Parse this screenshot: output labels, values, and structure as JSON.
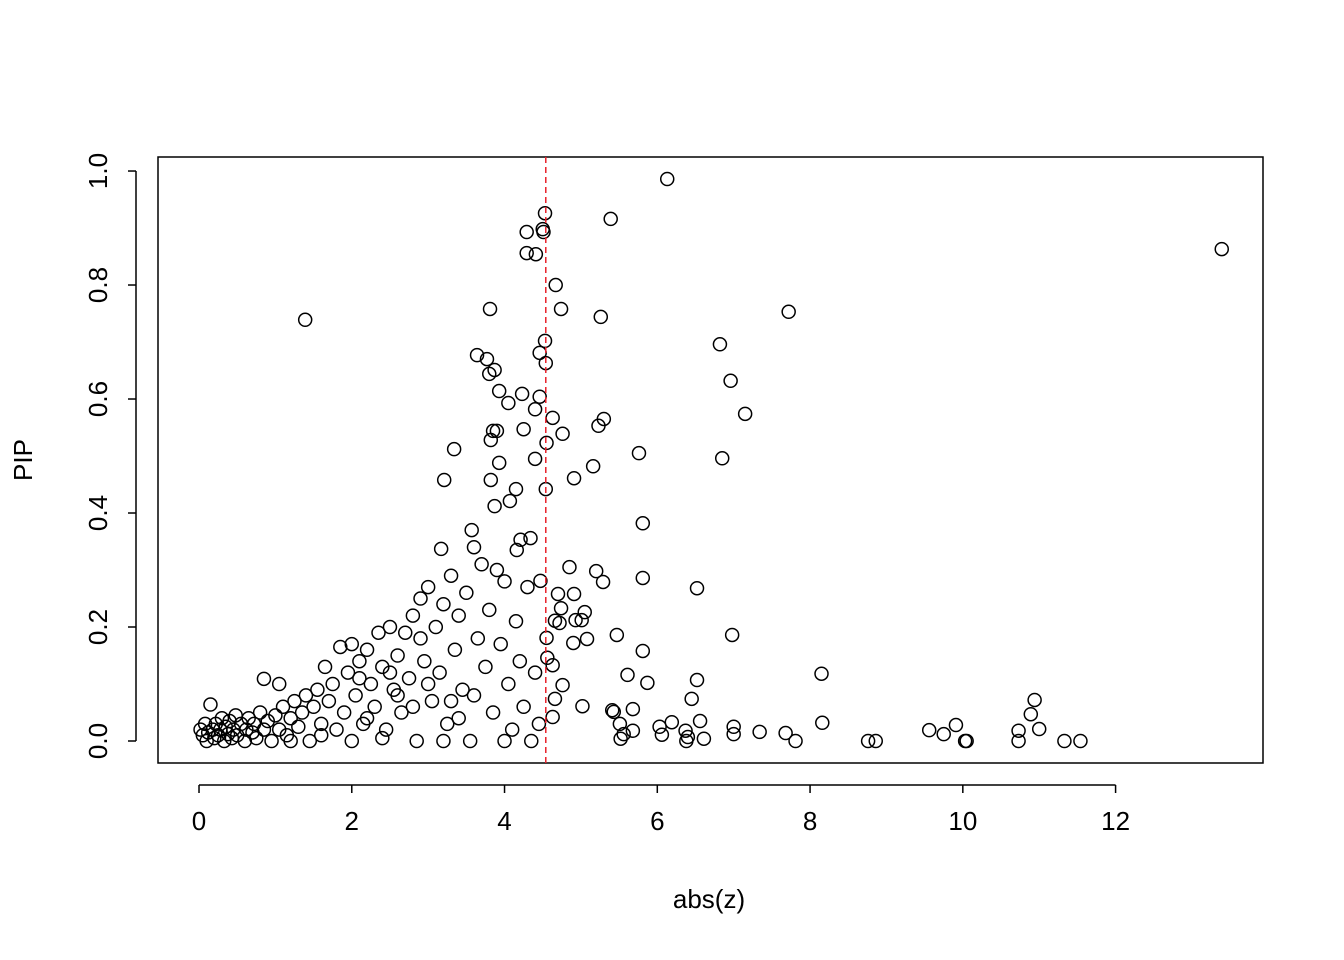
{
  "chart_data": {
    "type": "scatter",
    "x_label": "abs(z)",
    "y_label": "PIP",
    "xlim": [
      -0.537,
      13.93
    ],
    "ylim": [
      -0.0386,
      1.0246
    ],
    "xticks": [
      0,
      2,
      4,
      6,
      8,
      10,
      12
    ],
    "yticks": [
      {
        "value": 0,
        "label": "0.0"
      },
      0.2,
      0.4,
      0.6,
      0.8,
      {
        "value": 1,
        "label": "1.0"
      }
    ],
    "color": "#000000",
    "vline": {
      "x": 4.54,
      "color": "#e8202a"
    },
    "x": [
      6.13,
      13.39,
      5.39,
      4.53,
      4.5,
      4.51,
      4.29,
      4.29,
      4.41,
      4.67,
      1.39,
      3.81,
      4.74,
      5.26,
      7.72,
      6.82,
      4.53,
      3.64,
      3.77,
      4.46,
      4.54,
      3.8,
      3.87,
      6.96,
      3.93,
      4.23,
      4.46,
      4.05,
      4.4,
      7.15,
      4.63,
      5.3,
      5.23,
      4.25,
      3.85,
      3.9,
      4.76,
      3.82,
      4.55,
      3.34,
      5.76,
      4.4,
      6.85,
      3.93,
      5.16,
      4.91,
      3.21,
      3.82,
      4.15,
      4.54,
      4.07,
      3.87,
      5.81,
      3.57,
      4.34,
      4.21,
      3.17,
      4.16,
      4.85,
      5.2,
      5.81,
      5.29,
      4.47,
      6.52,
      4.7,
      4.91,
      5.47,
      6.98,
      5.81,
      5.61,
      5.87,
      6.52,
      8.15,
      6.45,
      0.85,
      1.05,
      10.94,
      10.89,
      5.68,
      8.16,
      10.73,
      10.73,
      11.0,
      9.56,
      9.75,
      9.91,
      10.03,
      10.05,
      11.33,
      11.54,
      8.76,
      8.86,
      7.81,
      7.68,
      7.34,
      7.0,
      7.0,
      6.56,
      6.61,
      6.37,
      6.38,
      6.4,
      6.19,
      6.03,
      6.06,
      5.68,
      5.52,
      5.56,
      5.51,
      5.43,
      5.41,
      5.05,
      5.01,
      4.93,
      5.08,
      4.9,
      4.55,
      4.56,
      4.63,
      4.76,
      4.66,
      4.63,
      5.02,
      4.72,
      4.74,
      4.66,
      0.02,
      0.05,
      0.08,
      0.1,
      0.12,
      0.15,
      0.18,
      0.2,
      0.22,
      0.25,
      0.28,
      0.3,
      0.33,
      0.35,
      0.38,
      0.4,
      0.43,
      0.45,
      0.48,
      0.5,
      0.55,
      0.6,
      0.62,
      0.65,
      0.7,
      0.72,
      0.75,
      0.8,
      0.85,
      0.9,
      0.95,
      1.0,
      1.05,
      1.1,
      1.15,
      1.2,
      1.25,
      1.3,
      1.35,
      1.4,
      1.45,
      1.5,
      1.55,
      1.6,
      1.65,
      1.7,
      1.75,
      1.8,
      1.85,
      1.9,
      1.95,
      2.0,
      2.05,
      2.1,
      2.15,
      2.2,
      2.25,
      2.3,
      2.35,
      2.4,
      2.45,
      2.5,
      2.55,
      2.6,
      2.65,
      2.7,
      2.75,
      2.8,
      2.85,
      2.9,
      2.95,
      3.0,
      3.05,
      3.1,
      3.15,
      3.2,
      3.25,
      3.3,
      3.35,
      3.4,
      3.45,
      3.5,
      3.55,
      3.6,
      3.65,
      3.7,
      3.75,
      3.8,
      3.85,
      3.9,
      3.95,
      4.0,
      4.05,
      4.1,
      4.15,
      4.2,
      4.25,
      4.3,
      4.35,
      4.4,
      4.45,
      1.2,
      1.6,
      2.0,
      2.4,
      2.8,
      3.2,
      3.6,
      4.0,
      2.2,
      2.6,
      3.0,
      3.4,
      2.1,
      2.5,
      2.9,
      3.3
    ],
    "values": [
      0.986,
      0.863,
      0.916,
      0.926,
      0.898,
      0.893,
      0.893,
      0.856,
      0.854,
      0.8,
      0.739,
      0.758,
      0.758,
      0.744,
      0.753,
      0.696,
      0.702,
      0.677,
      0.67,
      0.681,
      0.663,
      0.644,
      0.651,
      0.632,
      0.614,
      0.609,
      0.604,
      0.593,
      0.582,
      0.574,
      0.567,
      0.565,
      0.553,
      0.547,
      0.544,
      0.544,
      0.539,
      0.528,
      0.523,
      0.512,
      0.505,
      0.495,
      0.496,
      0.488,
      0.482,
      0.461,
      0.458,
      0.458,
      0.442,
      0.442,
      0.421,
      0.412,
      0.382,
      0.37,
      0.356,
      0.353,
      0.337,
      0.335,
      0.305,
      0.298,
      0.286,
      0.279,
      0.281,
      0.268,
      0.258,
      0.258,
      0.186,
      0.186,
      0.158,
      0.116,
      0.102,
      0.107,
      0.118,
      0.074,
      0.109,
      0.1,
      0.072,
      0.047,
      0.056,
      0.032,
      0.018,
      0,
      0.021,
      0.019,
      0.012,
      0.028,
      0,
      0,
      0,
      0,
      0,
      0,
      0,
      0.014,
      0.016,
      0.025,
      0.012,
      0.035,
      0.004,
      0.018,
      0,
      0.007,
      0.033,
      0.025,
      0.011,
      0.018,
      0.004,
      0.012,
      0.03,
      0.051,
      0.054,
      0.226,
      0.212,
      0.212,
      0.179,
      0.172,
      0.181,
      0.146,
      0.133,
      0.098,
      0.074,
      0.042,
      0.061,
      0.207,
      0.233,
      0.211,
      0.02,
      0.01,
      0.03,
      0,
      0.015,
      0.064,
      0.02,
      0.005,
      0.03,
      0.01,
      0.02,
      0.04,
      0,
      0.025,
      0.012,
      0.035,
      0.005,
      0.02,
      0.045,
      0.01,
      0.03,
      0,
      0.02,
      0.04,
      0.015,
      0.03,
      0.005,
      0.05,
      0.02,
      0.035,
      0,
      0.045,
      0.02,
      0.06,
      0.01,
      0.04,
      0.07,
      0.025,
      0.05,
      0.08,
      0,
      0.06,
      0.09,
      0.03,
      0.13,
      0.07,
      0.1,
      0.02,
      0.165,
      0.05,
      0.12,
      0.17,
      0.08,
      0.14,
      0.03,
      0.16,
      0.1,
      0.06,
      0.19,
      0.13,
      0.02,
      0.2,
      0.09,
      0.15,
      0.05,
      0.19,
      0.11,
      0.22,
      0,
      0.25,
      0.14,
      0.27,
      0.07,
      0.2,
      0.12,
      0.24,
      0.03,
      0.29,
      0.16,
      0.22,
      0.09,
      0.26,
      0,
      0.34,
      0.18,
      0.31,
      0.13,
      0.23,
      0.05,
      0.3,
      0.17,
      0.28,
      0.1,
      0.02,
      0.21,
      0.14,
      0.06,
      0.27,
      0,
      0.12,
      0.03,
      0,
      0.01,
      0,
      0.005,
      0.06,
      0,
      0.08,
      0,
      0.04,
      0.08,
      0.1,
      0.04,
      0.11,
      0.12,
      0.18,
      0.07
    ]
  }
}
